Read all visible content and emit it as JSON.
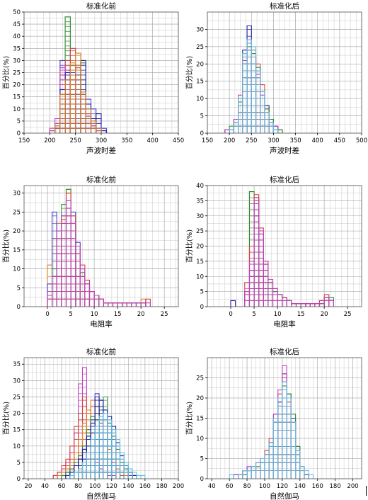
{
  "chart_data": [
    {
      "type": "histogram",
      "title": "标准化前",
      "xlabel": "声波时差",
      "ylabel": "百分比(%)",
      "xlim": [
        150,
        450
      ],
      "ylim": [
        0,
        50
      ],
      "xticks": [
        150,
        200,
        250,
        300,
        350,
        400,
        450
      ],
      "yticks": [
        0,
        5,
        10,
        15,
        20,
        25,
        30,
        35,
        40,
        45,
        50
      ],
      "bin_width": 10,
      "grid": true,
      "series": [
        {
          "color": "#2e8b2e",
          "x_start": 200,
          "values": [
            0,
            2,
            6,
            48,
            20,
            28,
            29,
            12,
            5,
            2,
            1,
            0
          ]
        },
        {
          "color": "#4040d0",
          "x_start": 200,
          "values": [
            1,
            3,
            30,
            22,
            25,
            24,
            16,
            14,
            10,
            6,
            2,
            0
          ]
        },
        {
          "color": "#d04040",
          "x_start": 200,
          "values": [
            1,
            4,
            24,
            30,
            35,
            27,
            14,
            8,
            3,
            1,
            0,
            0
          ]
        },
        {
          "color": "#c040c0",
          "x_start": 200,
          "values": [
            2,
            6,
            27,
            26,
            22,
            18,
            12,
            7,
            3,
            1,
            0,
            0
          ]
        },
        {
          "color": "#2020a0",
          "x_start": 210,
          "values": [
            2,
            18,
            25,
            28,
            24,
            30,
            12,
            6,
            8,
            1,
            0
          ]
        },
        {
          "color": "#e08020",
          "x_start": 210,
          "values": [
            3,
            16,
            22,
            29,
            33,
            17,
            10,
            5,
            2,
            0,
            0
          ]
        }
      ]
    },
    {
      "type": "histogram",
      "title": "标准化后",
      "xlabel": "声波时差",
      "ylabel": "百分比(%)",
      "xlim": [
        150,
        500
      ],
      "ylim": [
        0,
        35
      ],
      "xticks": [
        150,
        200,
        250,
        300,
        350,
        400,
        450,
        500
      ],
      "yticks": [
        0,
        5,
        10,
        15,
        20,
        25,
        30
      ],
      "bin_width": 10,
      "grid": true,
      "series": [
        {
          "color": "#2020a0",
          "x_start": 190,
          "values": [
            1,
            1,
            3,
            10,
            24,
            31,
            22,
            18,
            12,
            8,
            4,
            2,
            1,
            0
          ]
        },
        {
          "color": "#d04040",
          "x_start": 190,
          "values": [
            0,
            1,
            4,
            8,
            22,
            26,
            24,
            20,
            14,
            7,
            3,
            1,
            0,
            0
          ]
        },
        {
          "color": "#2e8b2e",
          "x_start": 190,
          "values": [
            0,
            2,
            3,
            9,
            20,
            25,
            23,
            19,
            12,
            7,
            4,
            1,
            1,
            0
          ]
        },
        {
          "color": "#c040c0",
          "x_start": 190,
          "values": [
            1,
            1,
            4,
            11,
            21,
            27,
            22,
            17,
            11,
            6,
            3,
            2,
            0,
            0
          ]
        },
        {
          "color": "#60c0e0",
          "x_start": 190,
          "values": [
            0,
            1,
            3,
            10,
            23,
            27,
            25,
            18,
            12,
            6,
            3,
            1,
            0,
            0
          ]
        }
      ]
    },
    {
      "type": "histogram",
      "title": "标准化前",
      "xlabel": "电阻率",
      "ylabel": "百分比(%)",
      "xlim": [
        -5,
        28
      ],
      "ylim": [
        0,
        32
      ],
      "xticks": [
        0,
        5,
        10,
        15,
        20,
        25
      ],
      "yticks": [
        0,
        5,
        10,
        15,
        20,
        25,
        30
      ],
      "bin_width": 1,
      "grid": true,
      "series": [
        {
          "color": "#e08020",
          "x_start": 0,
          "values": [
            11,
            18,
            22,
            24,
            31,
            20,
            14,
            9,
            6,
            4,
            3,
            2,
            1,
            1,
            1,
            1,
            1,
            1,
            1,
            1,
            2,
            0
          ]
        },
        {
          "color": "#4040d0",
          "x_start": 0,
          "values": [
            6,
            25,
            20,
            22,
            26,
            25,
            17,
            10,
            6,
            4,
            3,
            2,
            1,
            1,
            1,
            1,
            1,
            1,
            1,
            1,
            1,
            0
          ]
        },
        {
          "color": "#2e8b2e",
          "x_start": 0,
          "values": [
            3,
            10,
            18,
            27,
            31,
            22,
            2,
            9,
            6,
            4,
            3,
            2,
            1,
            1,
            1,
            1,
            1,
            1,
            1,
            1,
            1,
            0
          ]
        },
        {
          "color": "#d04040",
          "x_start": 0,
          "values": [
            2,
            6,
            16,
            23,
            30,
            24,
            16,
            11,
            7,
            4,
            3,
            2,
            1,
            1,
            1,
            1,
            1,
            1,
            1,
            1,
            1,
            2
          ]
        },
        {
          "color": "#c040c0",
          "x_start": 0,
          "values": [
            3,
            8,
            20,
            24,
            28,
            22,
            16,
            10,
            6,
            4,
            3,
            2,
            1,
            1,
            1,
            1,
            1,
            1,
            1,
            1,
            1,
            1
          ]
        }
      ]
    },
    {
      "type": "histogram",
      "title": "标准化后",
      "xlabel": "电阻率",
      "ylabel": "百分比(%)",
      "xlim": [
        -5,
        28
      ],
      "ylim": [
        0,
        40
      ],
      "xticks": [
        0,
        5,
        10,
        15,
        20,
        25
      ],
      "yticks": [
        0,
        5,
        10,
        15,
        20,
        25,
        30,
        35,
        40
      ],
      "bin_width": 1,
      "grid": true,
      "series": [
        {
          "color": "#2020a0",
          "x_start": 0,
          "values": [
            2,
            0,
            0,
            5,
            12,
            36,
            24,
            14,
            8,
            5,
            4,
            3,
            2,
            1,
            1,
            1,
            1,
            1,
            1,
            1,
            3,
            2
          ]
        },
        {
          "color": "#2e8b2e",
          "x_start": 0,
          "values": [
            0,
            0,
            0,
            4,
            38,
            30,
            22,
            15,
            8,
            5,
            4,
            3,
            2,
            1,
            1,
            1,
            1,
            1,
            1,
            1,
            2,
            3
          ]
        },
        {
          "color": "#d04040",
          "x_start": 0,
          "values": [
            0,
            0,
            0,
            8,
            20,
            37,
            26,
            14,
            9,
            6,
            4,
            3,
            2,
            1,
            1,
            1,
            1,
            1,
            1,
            2,
            4,
            0
          ]
        },
        {
          "color": "#c040c0",
          "x_start": 0,
          "values": [
            0,
            0,
            0,
            5,
            15,
            35,
            25,
            15,
            9,
            6,
            4,
            3,
            2,
            1,
            1,
            1,
            1,
            1,
            1,
            1,
            3,
            2
          ]
        }
      ]
    },
    {
      "type": "histogram",
      "title": "标准化前",
      "xlabel": "自然伽马",
      "ylabel": "百分比(%)",
      "xlim": [
        15,
        200
      ],
      "ylim": [
        0,
        37
      ],
      "xticks": [
        20,
        40,
        60,
        80,
        100,
        120,
        140,
        160,
        180,
        200
      ],
      "yticks": [
        0,
        5,
        10,
        15,
        20,
        25,
        30,
        35
      ],
      "bin_width": 5,
      "grid": true,
      "series": [
        {
          "color": "#c040c0",
          "x_start": 45,
          "values": [
            0,
            1,
            2,
            3,
            5,
            8,
            14,
            29,
            34,
            20,
            10,
            5,
            3,
            2,
            1,
            1,
            0,
            0,
            0,
            0,
            0,
            0,
            0,
            0,
            0,
            0
          ]
        },
        {
          "color": "#d04040",
          "x_start": 45,
          "values": [
            0,
            1,
            2,
            4,
            6,
            10,
            16,
            20,
            25,
            14,
            22,
            20,
            17,
            12,
            8,
            5,
            3,
            1,
            0,
            0,
            0,
            0,
            0,
            0,
            0,
            0
          ]
        },
        {
          "color": "#e08020",
          "x_start": 45,
          "values": [
            0,
            0,
            1,
            2,
            3,
            5,
            8,
            12,
            17,
            21,
            24,
            20,
            16,
            12,
            9,
            6,
            3,
            2,
            1,
            0,
            0,
            0,
            0,
            0,
            0,
            0
          ]
        },
        {
          "color": "#4040d0",
          "x_start": 45,
          "values": [
            0,
            0,
            0,
            1,
            2,
            3,
            4,
            6,
            9,
            13,
            18,
            26,
            24,
            20,
            16,
            12,
            8,
            5,
            3,
            1,
            1,
            0,
            0,
            0,
            0,
            0
          ]
        },
        {
          "color": "#2e8b2e",
          "x_start": 45,
          "values": [
            0,
            0,
            0,
            1,
            2,
            3,
            5,
            7,
            10,
            15,
            19,
            22,
            21,
            25,
            17,
            13,
            9,
            5,
            3,
            2,
            1,
            0,
            0,
            0,
            0,
            0
          ]
        },
        {
          "color": "#2020a0",
          "x_start": 45,
          "values": [
            0,
            0,
            0,
            0,
            1,
            2,
            4,
            6,
            9,
            13,
            17,
            25,
            24,
            21,
            19,
            16,
            11,
            7,
            4,
            2,
            1,
            0,
            0,
            0,
            0,
            0
          ]
        },
        {
          "color": "#60c0e0",
          "x_start": 45,
          "values": [
            0,
            0,
            0,
            0,
            0,
            1,
            2,
            3,
            5,
            8,
            12,
            16,
            19,
            20,
            18,
            15,
            12,
            8,
            5,
            3,
            2,
            1,
            1,
            0,
            0,
            0
          ]
        }
      ]
    },
    {
      "type": "histogram",
      "title": "标准化后",
      "xlabel": "自然伽马",
      "ylabel": "百分比(%)",
      "xlim": [
        35,
        210
      ],
      "ylim": [
        0,
        30
      ],
      "xticks": [
        40,
        60,
        80,
        100,
        120,
        140,
        160,
        180,
        200
      ],
      "yticks": [
        0,
        5,
        10,
        15,
        20,
        25
      ],
      "bin_width": 5,
      "grid": true,
      "series": [
        {
          "color": "#2020a0",
          "x_start": 60,
          "values": [
            0,
            1,
            1,
            2,
            3,
            3,
            4,
            4,
            6,
            9,
            15,
            19,
            26,
            21,
            15,
            7,
            3,
            1,
            0,
            0,
            0,
            0
          ]
        },
        {
          "color": "#d04040",
          "x_start": 60,
          "values": [
            0,
            0,
            1,
            2,
            2,
            3,
            4,
            5,
            7,
            10,
            16,
            21,
            25,
            19,
            14,
            8,
            3,
            1,
            0,
            0,
            0,
            0
          ]
        },
        {
          "color": "#2e8b2e",
          "x_start": 60,
          "values": [
            0,
            0,
            1,
            1,
            2,
            3,
            3,
            4,
            6,
            8,
            14,
            18,
            23,
            21,
            16,
            8,
            2,
            1,
            0,
            0,
            0,
            0
          ]
        },
        {
          "color": "#c040c0",
          "x_start": 60,
          "values": [
            0,
            1,
            1,
            2,
            3,
            3,
            4,
            5,
            6,
            9,
            16,
            22,
            28,
            20,
            14,
            7,
            3,
            1,
            0,
            0,
            0,
            0
          ]
        },
        {
          "color": "#60c0e0",
          "x_start": 60,
          "values": [
            1,
            0,
            1,
            2,
            2,
            3,
            4,
            5,
            6,
            9,
            15,
            20,
            24,
            20,
            14,
            7,
            3,
            2,
            1,
            0,
            0,
            0
          ]
        }
      ]
    }
  ]
}
